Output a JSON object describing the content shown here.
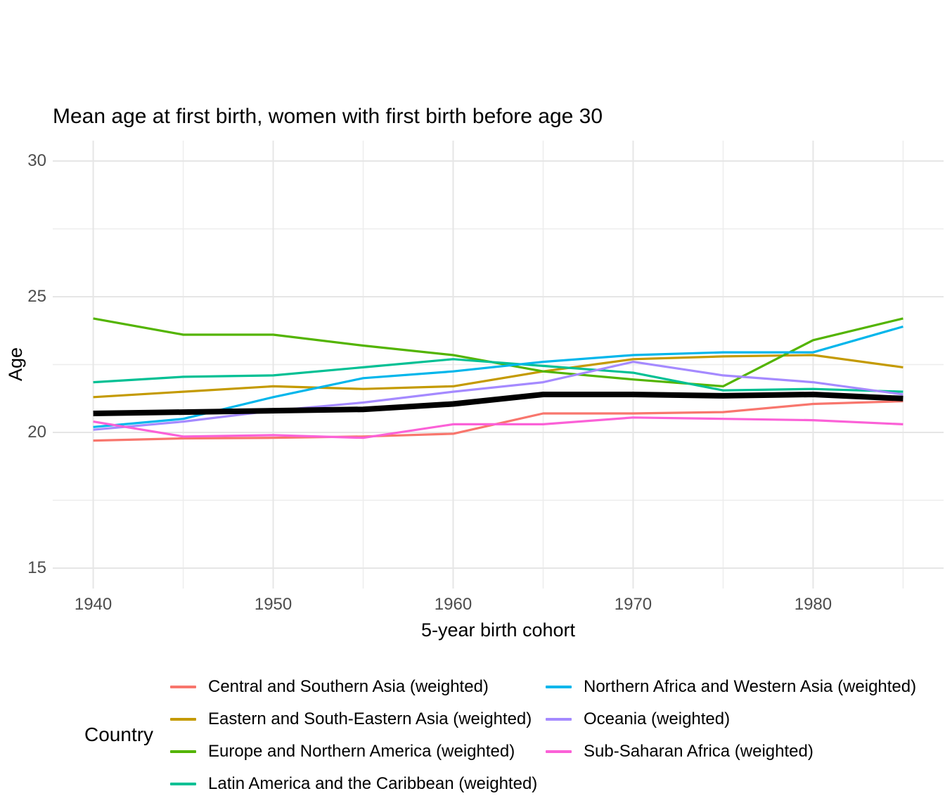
{
  "title": "Mean age at first birth, women with first birth before age 30",
  "x_axis": {
    "label": "5-year birth cohort",
    "ticks": [
      1940,
      1950,
      1960,
      1970,
      1980
    ]
  },
  "y_axis": {
    "label": "Age",
    "ticks": [
      15,
      20,
      25,
      30
    ]
  },
  "legend": {
    "title": "Country",
    "position": "bottom",
    "columns": 2
  },
  "colors": {
    "grid_major": "#e6e6e6",
    "grid_minor": "#ededed",
    "tick_text": "#4d4d4d",
    "mean_line": "#000000"
  },
  "chart_data": {
    "type": "line",
    "x": [
      1940,
      1945,
      1950,
      1955,
      1960,
      1965,
      1970,
      1975,
      1980,
      1985
    ],
    "xlim": [
      1937.75,
      1987.25
    ],
    "ylim": [
      14.25,
      30.75
    ],
    "x_minor_gridlines": [
      1945,
      1955,
      1965,
      1975,
      1985
    ],
    "y_minor_gridlines": [
      17.5,
      22.5,
      27.5
    ],
    "grid": "on",
    "title": "Mean age at first birth, women with first birth before age 30",
    "xlabel": "5-year birth cohort",
    "ylabel": "Age",
    "series": [
      {
        "id": "central-southern-asia",
        "name": "Central and Southern Asia (weighted)",
        "color": "#F8766D",
        "in_legend": true,
        "width": 3.2,
        "values": [
          19.7,
          19.78,
          19.8,
          19.85,
          19.95,
          20.7,
          20.7,
          20.75,
          21.05,
          21.15
        ]
      },
      {
        "id": "eastern-south-eastern-asia",
        "name": "Eastern and South-Eastern Asia (weighted)",
        "color": "#C49A00",
        "in_legend": true,
        "width": 3.2,
        "values": [
          21.3,
          21.5,
          21.7,
          21.6,
          21.7,
          22.25,
          22.7,
          22.8,
          22.85,
          22.4
        ]
      },
      {
        "id": "europe-northern-america",
        "name": "Europe and Northern America (weighted)",
        "color": "#53B400",
        "in_legend": true,
        "width": 3.2,
        "values": [
          24.2,
          23.6,
          23.6,
          23.2,
          22.85,
          22.25,
          21.95,
          21.7,
          23.4,
          24.2
        ]
      },
      {
        "id": "latin-america-caribbean",
        "name": "Latin America and the Caribbean (weighted)",
        "color": "#00C094",
        "in_legend": true,
        "width": 3.2,
        "values": [
          21.85,
          22.05,
          22.1,
          22.4,
          22.7,
          22.45,
          22.2,
          21.55,
          21.6,
          21.5
        ]
      },
      {
        "id": "northern-africa-western-asia",
        "name": "Northern Africa and Western Asia (weighted)",
        "color": "#00B6EB",
        "in_legend": true,
        "width": 3.2,
        "values": [
          20.2,
          20.5,
          21.3,
          22.0,
          22.25,
          22.6,
          22.85,
          22.95,
          22.95,
          23.9
        ]
      },
      {
        "id": "oceania",
        "name": "Oceania (weighted)",
        "color": "#A58AFF",
        "in_legend": true,
        "width": 3.2,
        "values": [
          20.1,
          20.4,
          20.8,
          21.1,
          21.5,
          21.85,
          22.6,
          22.1,
          21.85,
          21.4
        ]
      },
      {
        "id": "sub-saharan-africa",
        "name": "Sub-Saharan Africa (weighted)",
        "color": "#FB61D7",
        "in_legend": true,
        "width": 3.2,
        "values": [
          20.4,
          19.85,
          19.9,
          19.8,
          20.3,
          20.3,
          20.55,
          20.5,
          20.45,
          20.3
        ]
      },
      {
        "id": "overall-mean",
        "name": "",
        "color": "#000000",
        "in_legend": false,
        "width": 8,
        "values": [
          20.7,
          20.75,
          20.8,
          20.85,
          21.05,
          21.4,
          21.4,
          21.35,
          21.4,
          21.25
        ]
      }
    ]
  }
}
